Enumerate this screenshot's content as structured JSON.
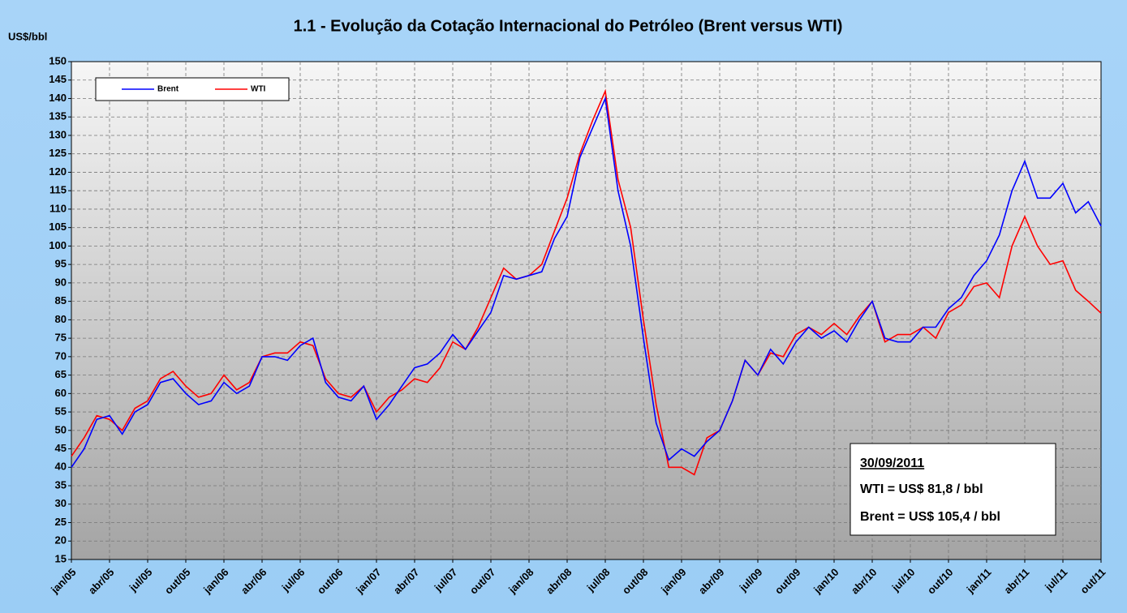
{
  "chart_data": {
    "type": "line",
    "title": "1.1 - Evolução da Cotação Internacional do Petróleo (Brent versus WTI)",
    "y_label": "US$/bbl",
    "categories": [
      "jan/05",
      null,
      null,
      "abr/05",
      null,
      null,
      "jul/05",
      null,
      null,
      "out/05",
      null,
      null,
      "jan/06",
      null,
      null,
      "abr/06",
      null,
      null,
      "jul/06",
      null,
      null,
      "out/06",
      null,
      null,
      "jan/07",
      null,
      null,
      "abr/07",
      null,
      null,
      "jul/07",
      null,
      null,
      "out/07",
      null,
      null,
      "jan/08",
      null,
      null,
      "abr/08",
      null,
      null,
      "jul/08",
      null,
      null,
      "out/08",
      null,
      null,
      "jan/09",
      null,
      null,
      "abr/09",
      null,
      null,
      "jul/09",
      null,
      null,
      "out/09",
      null,
      null,
      "jan/10",
      null,
      null,
      "abr/10",
      null,
      null,
      "jul/10",
      null,
      null,
      "out/10",
      null,
      null,
      "jan/11",
      null,
      null,
      "abr/11",
      null,
      null,
      "jul/11",
      null,
      null,
      "out/11"
    ],
    "series": [
      {
        "name": "Brent",
        "color": "#0000ff",
        "values": [
          40,
          45,
          53,
          54,
          49,
          55,
          57,
          63,
          64,
          60,
          57,
          58,
          63,
          60,
          62,
          70,
          70,
          69,
          73,
          75,
          63,
          59,
          58,
          62,
          53,
          57,
          62,
          67,
          68,
          71,
          76,
          72,
          77,
          82,
          92,
          91,
          92,
          93,
          102,
          108,
          124,
          132,
          140,
          115,
          100,
          75,
          52,
          42,
          45,
          43,
          47,
          50,
          58,
          69,
          65,
          72,
          68,
          74,
          78,
          75,
          77,
          74,
          80,
          85,
          75,
          74,
          74,
          78,
          78,
          83,
          86,
          92,
          96,
          103,
          115,
          123,
          113,
          113,
          117,
          109,
          112,
          105.4
        ]
      },
      {
        "name": "WTI",
        "color": "#ff0000",
        "values": [
          43,
          48,
          54,
          53,
          50,
          56,
          58,
          64,
          66,
          62,
          59,
          60,
          65,
          61,
          63,
          70,
          71,
          71,
          74,
          73,
          64,
          60,
          59,
          62,
          55,
          59,
          61,
          64,
          63,
          67,
          74,
          72,
          78,
          86,
          94,
          91,
          92,
          95,
          104,
          113,
          125,
          134,
          142,
          118,
          105,
          80,
          57,
          40,
          40,
          38,
          48,
          50,
          58,
          69,
          65,
          71,
          70,
          76,
          78,
          76,
          79,
          76,
          81,
          85,
          74,
          76,
          76,
          78,
          75,
          82,
          84,
          89,
          90,
          86,
          100,
          108,
          100,
          95,
          96,
          88,
          85,
          81.8
        ]
      }
    ],
    "ylim": [
      15,
      150
    ],
    "yticks": [
      15,
      20,
      25,
      30,
      35,
      40,
      45,
      50,
      55,
      60,
      65,
      70,
      75,
      80,
      85,
      90,
      95,
      100,
      105,
      110,
      115,
      120,
      125,
      130,
      135,
      140,
      145,
      150
    ],
    "grid": true,
    "legend": "top-left",
    "annotation": {
      "date": "30/09/2011",
      "lines": [
        "WTI = US$ 81,8 / bbl",
        "Brent = US$ 105,4 / bbl"
      ]
    }
  }
}
